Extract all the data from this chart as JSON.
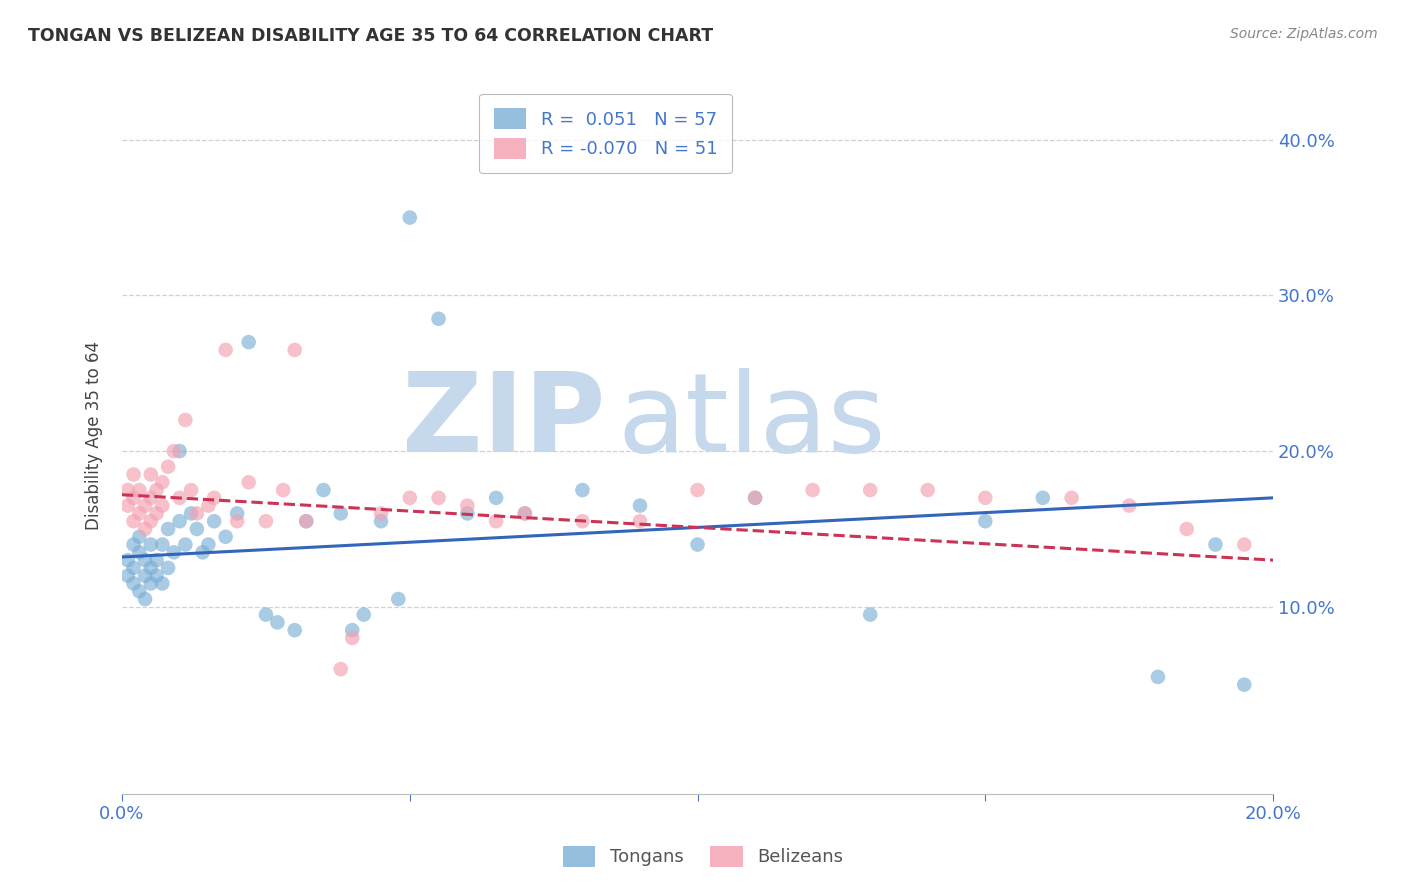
{
  "title": "TONGAN VS BELIZEAN DISABILITY AGE 35 TO 64 CORRELATION CHART",
  "source": "Source: ZipAtlas.com",
  "ylabel": "Disability Age 35 to 64",
  "xlim": [
    0.0,
    0.2
  ],
  "ylim": [
    -0.02,
    0.44
  ],
  "xticks": [
    0.0,
    0.05,
    0.1,
    0.15,
    0.2
  ],
  "yticks_right": [
    0.1,
    0.2,
    0.3,
    0.4
  ],
  "xtick_labels": [
    "0.0%",
    "",
    "",
    "",
    "20.0%"
  ],
  "ytick_labels_right": [
    "10.0%",
    "20.0%",
    "30.0%",
    "40.0%"
  ],
  "grid_color": "#cccccc",
  "background_color": "#ffffff",
  "tongan_color": "#7bafd4",
  "belizean_color": "#f4a0b0",
  "tongan_line_color": "#3366bb",
  "belizean_line_color": "#cc3355",
  "tongan_R": 0.051,
  "tongan_N": 57,
  "belizean_R": -0.07,
  "belizean_N": 51,
  "watermark_zip": "ZIP",
  "watermark_atlas": "atlas",
  "watermark_color_zip": "#c5d8ec",
  "watermark_color_atlas": "#c5d8ec",
  "tongan_x": [
    0.001,
    0.001,
    0.002,
    0.002,
    0.002,
    0.003,
    0.003,
    0.003,
    0.004,
    0.004,
    0.004,
    0.005,
    0.005,
    0.005,
    0.006,
    0.006,
    0.007,
    0.007,
    0.008,
    0.008,
    0.009,
    0.01,
    0.01,
    0.011,
    0.012,
    0.013,
    0.014,
    0.015,
    0.016,
    0.018,
    0.02,
    0.022,
    0.025,
    0.027,
    0.03,
    0.032,
    0.035,
    0.038,
    0.04,
    0.042,
    0.045,
    0.048,
    0.05,
    0.055,
    0.06,
    0.065,
    0.07,
    0.08,
    0.09,
    0.1,
    0.11,
    0.13,
    0.15,
    0.16,
    0.18,
    0.19,
    0.195
  ],
  "tongan_y": [
    0.13,
    0.12,
    0.115,
    0.125,
    0.14,
    0.11,
    0.135,
    0.145,
    0.105,
    0.12,
    0.13,
    0.115,
    0.125,
    0.14,
    0.12,
    0.13,
    0.115,
    0.14,
    0.125,
    0.15,
    0.135,
    0.2,
    0.155,
    0.14,
    0.16,
    0.15,
    0.135,
    0.14,
    0.155,
    0.145,
    0.16,
    0.27,
    0.095,
    0.09,
    0.085,
    0.155,
    0.175,
    0.16,
    0.085,
    0.095,
    0.155,
    0.105,
    0.35,
    0.285,
    0.16,
    0.17,
    0.16,
    0.175,
    0.165,
    0.14,
    0.17,
    0.095,
    0.155,
    0.17,
    0.055,
    0.14,
    0.05
  ],
  "belizean_x": [
    0.001,
    0.001,
    0.002,
    0.002,
    0.002,
    0.003,
    0.003,
    0.004,
    0.004,
    0.005,
    0.005,
    0.005,
    0.006,
    0.006,
    0.007,
    0.007,
    0.008,
    0.009,
    0.01,
    0.011,
    0.012,
    0.013,
    0.015,
    0.016,
    0.018,
    0.02,
    0.022,
    0.025,
    0.028,
    0.03,
    0.032,
    0.038,
    0.04,
    0.045,
    0.05,
    0.055,
    0.06,
    0.065,
    0.07,
    0.08,
    0.09,
    0.1,
    0.11,
    0.12,
    0.13,
    0.14,
    0.15,
    0.165,
    0.175,
    0.185,
    0.195
  ],
  "belizean_y": [
    0.165,
    0.175,
    0.155,
    0.17,
    0.185,
    0.16,
    0.175,
    0.15,
    0.165,
    0.155,
    0.17,
    0.185,
    0.16,
    0.175,
    0.165,
    0.18,
    0.19,
    0.2,
    0.17,
    0.22,
    0.175,
    0.16,
    0.165,
    0.17,
    0.265,
    0.155,
    0.18,
    0.155,
    0.175,
    0.265,
    0.155,
    0.06,
    0.08,
    0.16,
    0.17,
    0.17,
    0.165,
    0.155,
    0.16,
    0.155,
    0.155,
    0.175,
    0.17,
    0.175,
    0.175,
    0.175,
    0.17,
    0.17,
    0.165,
    0.15,
    0.14
  ],
  "tongan_line_start_y": 0.132,
  "tongan_line_end_y": 0.17,
  "belizean_line_start_y": 0.172,
  "belizean_line_end_y": 0.13
}
